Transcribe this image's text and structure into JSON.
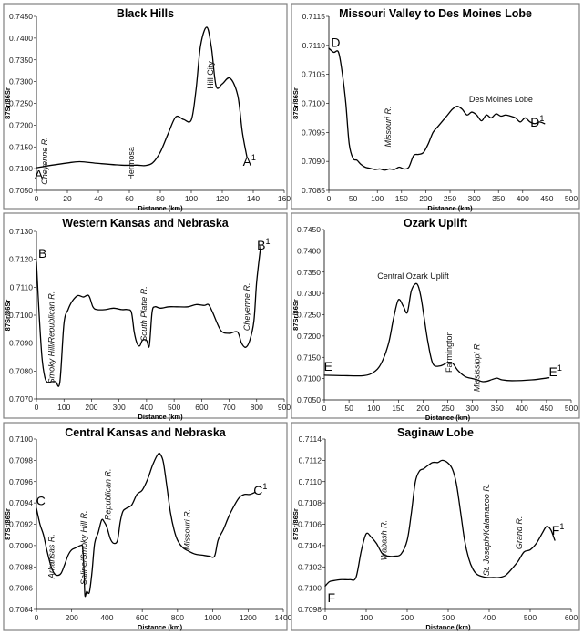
{
  "chart_data": [
    {
      "id": "black-hills",
      "type": "line",
      "title": "Black Hills",
      "xlabel": "Distance (km)",
      "ylabel": "87Sr/86Sr",
      "xlim": [
        0,
        160
      ],
      "ylim": [
        0.705,
        0.745
      ],
      "xticks": [
        0,
        20,
        40,
        60,
        80,
        100,
        120,
        140,
        160
      ],
      "yticks": [
        0.705,
        0.71,
        0.715,
        0.72,
        0.725,
        0.73,
        0.735,
        0.74,
        0.745
      ],
      "ydecimals": 4,
      "x": [
        0,
        10,
        20,
        28,
        40,
        55,
        65,
        70,
        75,
        80,
        85,
        90,
        95,
        100,
        103,
        106,
        110,
        113,
        116,
        120,
        125,
        130,
        133,
        136
      ],
      "y": [
        0.7102,
        0.7108,
        0.7113,
        0.7116,
        0.7112,
        0.7108,
        0.7108,
        0.7107,
        0.7113,
        0.7138,
        0.718,
        0.7219,
        0.7213,
        0.7212,
        0.728,
        0.7383,
        0.7425,
        0.7378,
        0.729,
        0.7295,
        0.7308,
        0.7268,
        0.7183,
        0.7125
      ],
      "points": [
        {
          "label": "A",
          "sup": "",
          "x": 1.5,
          "y": 0.7076
        },
        {
          "label": "A",
          "sup": "1",
          "x": 137.5,
          "y": 0.7107
        }
      ],
      "annotations": [
        {
          "text": "Cheyenne R.",
          "x": 7,
          "y": 0.7118,
          "rotate": -90,
          "italic": true
        },
        {
          "text": "Hermosa",
          "x": 63,
          "y": 0.7112,
          "rotate": -90,
          "italic": false
        },
        {
          "text": "Hill City",
          "x": 114,
          "y": 0.7315,
          "rotate": -90,
          "italic": false
        }
      ]
    },
    {
      "id": "missouri-valley",
      "type": "line",
      "title": "Missouri Valley to Des Moines Lobe",
      "xlabel": "Distance (km)",
      "ylabel": "87Sr/86Sr",
      "xlim": [
        0,
        500
      ],
      "ylim": [
        0.7085,
        0.7115
      ],
      "xticks": [
        0,
        50,
        100,
        150,
        200,
        250,
        300,
        350,
        400,
        450,
        500
      ],
      "yticks": [
        0.7085,
        0.709,
        0.7095,
        0.71,
        0.7105,
        0.711,
        0.7115
      ],
      "ydecimals": 4,
      "x": [
        0,
        10,
        20,
        28,
        35,
        42,
        50,
        58,
        66,
        75,
        85,
        95,
        105,
        115,
        125,
        135,
        145,
        155,
        165,
        175,
        185,
        195,
        205,
        215,
        225,
        235,
        245,
        255,
        265,
        275,
        285,
        295,
        305,
        315,
        325,
        335,
        345,
        355,
        365,
        375,
        385,
        395,
        405,
        415,
        425,
        435,
        445
      ],
      "y": [
        0.71095,
        0.71088,
        0.71088,
        0.7105,
        0.71,
        0.7093,
        0.70905,
        0.70902,
        0.70895,
        0.7089,
        0.70888,
        0.70886,
        0.70887,
        0.70885,
        0.70887,
        0.70886,
        0.7089,
        0.70887,
        0.7089,
        0.7091,
        0.70912,
        0.70915,
        0.7093,
        0.7095,
        0.7096,
        0.7097,
        0.7098,
        0.7099,
        0.70995,
        0.7099,
        0.7098,
        0.70985,
        0.7098,
        0.7097,
        0.7098,
        0.70975,
        0.70982,
        0.70978,
        0.7098,
        0.70978,
        0.70975,
        0.70968,
        0.70975,
        0.70968,
        0.70965,
        0.70968,
        0.70965
      ],
      "points": [
        {
          "label": "D",
          "sup": "",
          "x": 14,
          "y": 0.71097
        },
        {
          "label": "D",
          "sup": "1",
          "x": 430,
          "y": 0.7096
        }
      ],
      "annotations": [
        {
          "text": "Missouri R.",
          "x": 128,
          "y": 0.7096,
          "rotate": -90,
          "italic": true
        },
        {
          "text": "Des Moines Lobe",
          "x": 355,
          "y": 0.71002,
          "rotate": 0,
          "italic": false
        }
      ]
    },
    {
      "id": "western-kansas",
      "type": "line",
      "title": "Western Kansas and Nebraska",
      "xlabel": "Distance (km)",
      "ylabel": "87Sr/86Sr",
      "xlim": [
        0,
        900
      ],
      "ylim": [
        0.707,
        0.713
      ],
      "xticks": [
        0,
        100,
        200,
        300,
        400,
        500,
        600,
        700,
        800,
        900
      ],
      "yticks": [
        0.707,
        0.708,
        0.709,
        0.71,
        0.711,
        0.712,
        0.713
      ],
      "ydecimals": 4,
      "x": [
        0,
        10,
        20,
        30,
        40,
        55,
        70,
        85,
        100,
        115,
        130,
        150,
        170,
        190,
        205,
        220,
        250,
        280,
        310,
        330,
        345,
        355,
        365,
        375,
        385,
        400,
        410,
        420,
        430,
        450,
        480,
        510,
        550,
        580,
        610,
        625,
        640,
        670,
        700,
        730,
        745,
        760,
        775,
        790,
        800,
        815
      ],
      "y": [
        0.7119,
        0.71,
        0.7085,
        0.7078,
        0.7076,
        0.70762,
        0.70762,
        0.7076,
        0.7097,
        0.7102,
        0.7105,
        0.7107,
        0.71065,
        0.7107,
        0.7103,
        0.7102,
        0.7102,
        0.71025,
        0.7102,
        0.7102,
        0.7101,
        0.7094,
        0.709,
        0.7089,
        0.7091,
        0.7091,
        0.7089,
        0.7101,
        0.7103,
        0.71025,
        0.7103,
        0.7103,
        0.7103,
        0.71038,
        0.71035,
        0.71038,
        0.7101,
        0.70945,
        0.70935,
        0.7094,
        0.709,
        0.70885,
        0.7091,
        0.7098,
        0.7112,
        0.7125
      ],
      "points": [
        {
          "label": "B",
          "sup": "",
          "x": 22,
          "y": 0.71205
        },
        {
          "label": "B",
          "sup": "1",
          "x": 825,
          "y": 0.71235
        }
      ],
      "annotations": [
        {
          "text": "Smoky Hill/Republican R.",
          "x": 65,
          "y": 0.7092,
          "rotate": -90,
          "italic": true
        },
        {
          "text": "South Platte R.",
          "x": 400,
          "y": 0.71005,
          "rotate": -90,
          "italic": true
        },
        {
          "text": "Cheyenne R.",
          "x": 775,
          "y": 0.7103,
          "rotate": -90,
          "italic": true
        }
      ]
    },
    {
      "id": "ozark",
      "type": "line",
      "title": "Ozark Uplift",
      "xlabel": "Distance (km)",
      "ylabel": "87Sr/86Sr",
      "xlim": [
        0,
        500
      ],
      "ylim": [
        0.705,
        0.745
      ],
      "xticks": [
        0,
        50,
        100,
        150,
        200,
        250,
        300,
        350,
        400,
        450,
        500
      ],
      "yticks": [
        0.705,
        0.71,
        0.715,
        0.72,
        0.725,
        0.73,
        0.735,
        0.74,
        0.745
      ],
      "ydecimals": 4,
      "x": [
        0,
        40,
        80,
        100,
        115,
        130,
        140,
        150,
        160,
        168,
        176,
        184,
        190,
        196,
        202,
        210,
        220,
        235,
        250,
        260,
        270,
        285,
        300,
        310,
        320,
        330,
        340,
        350,
        360,
        380,
        420,
        455
      ],
      "y": [
        0.7108,
        0.7107,
        0.7107,
        0.7115,
        0.7135,
        0.7182,
        0.724,
        0.7285,
        0.727,
        0.7255,
        0.7305,
        0.7322,
        0.7318,
        0.729,
        0.7245,
        0.7185,
        0.7135,
        0.713,
        0.7138,
        0.7136,
        0.712,
        0.7105,
        0.71,
        0.7097,
        0.7093,
        0.7094,
        0.7098,
        0.7101,
        0.7097,
        0.7095,
        0.7097,
        0.7102
      ],
      "points": [
        {
          "label": "E",
          "sup": "",
          "x": 8,
          "y": 0.7118
        },
        {
          "label": "E",
          "sup": "1",
          "x": 468,
          "y": 0.7106
        }
      ],
      "annotations": [
        {
          "text": "Central Ozark Uplift",
          "x": 180,
          "y": 0.7334,
          "rotate": 0,
          "italic": false
        },
        {
          "text": "Farmington",
          "x": 258,
          "y": 0.7163,
          "rotate": -90,
          "italic": false
        },
        {
          "text": "Mississippi R.",
          "x": 315,
          "y": 0.7128,
          "rotate": -90,
          "italic": true
        }
      ]
    },
    {
      "id": "central-kansas",
      "type": "line",
      "title": "Central Kansas and Nebraska",
      "xlabel": "Distance (km)",
      "ylabel": "87Sr/86Sr",
      "xlim": [
        0,
        1400
      ],
      "ylim": [
        0.7084,
        0.71
      ],
      "xticks": [
        0,
        200,
        400,
        600,
        800,
        1000,
        1200,
        1400
      ],
      "yticks": [
        0.7084,
        0.7086,
        0.7088,
        0.709,
        0.7092,
        0.7094,
        0.7096,
        0.7098,
        0.71
      ],
      "ydecimals": 4,
      "x": [
        0,
        20,
        40,
        60,
        80,
        100,
        120,
        140,
        160,
        180,
        200,
        225,
        250,
        262,
        270,
        275,
        285,
        300,
        315,
        330,
        350,
        370,
        385,
        400,
        420,
        440,
        460,
        475,
        490,
        510,
        540,
        570,
        600,
        630,
        660,
        690,
        705,
        720,
        740,
        760,
        780,
        800,
        830,
        860,
        900,
        940,
        980,
        1010,
        1030,
        1060,
        1090,
        1120,
        1150,
        1180,
        1210,
        1240
      ],
      "y": [
        0.70935,
        0.7092,
        0.7091,
        0.70895,
        0.70882,
        0.70874,
        0.70872,
        0.70874,
        0.70882,
        0.70891,
        0.70896,
        0.70898,
        0.709,
        0.70898,
        0.70875,
        0.70853,
        0.70857,
        0.70856,
        0.70875,
        0.70902,
        0.70912,
        0.70924,
        0.70922,
        0.70917,
        0.70906,
        0.70902,
        0.70905,
        0.70922,
        0.70932,
        0.70935,
        0.70938,
        0.70948,
        0.70952,
        0.70962,
        0.70976,
        0.70986,
        0.70985,
        0.70978,
        0.70955,
        0.70931,
        0.70915,
        0.70905,
        0.70898,
        0.70895,
        0.70892,
        0.70891,
        0.7089,
        0.7089,
        0.70905,
        0.70915,
        0.70927,
        0.70937,
        0.70945,
        0.70948,
        0.70948,
        0.7095
      ],
      "points": [
        {
          "label": "C",
          "sup": "",
          "x": 25,
          "y": 0.70938
        },
        {
          "label": "C",
          "sup": "1",
          "x": 1270,
          "y": 0.70948
        }
      ],
      "annotations": [
        {
          "text": "Arkansas R.",
          "x": 100,
          "y": 0.7089,
          "rotate": -90,
          "italic": true
        },
        {
          "text": "Saline/Smoky Hill R.",
          "x": 285,
          "y": 0.70898,
          "rotate": -90,
          "italic": true
        },
        {
          "text": "Republican R.",
          "x": 420,
          "y": 0.70948,
          "rotate": -90,
          "italic": true
        },
        {
          "text": "Missouri R.",
          "x": 870,
          "y": 0.70915,
          "rotate": -90,
          "italic": true
        }
      ]
    },
    {
      "id": "saginaw",
      "type": "line",
      "title": "Saginaw Lobe",
      "xlabel": "Distance (km)",
      "ylabel": "87Sr/86Sr",
      "xlim": [
        0,
        600
      ],
      "ylim": [
        0.7098,
        0.7114
      ],
      "xticks": [
        0,
        100,
        200,
        300,
        400,
        500,
        600
      ],
      "yticks": [
        0.7098,
        0.71,
        0.7102,
        0.7104,
        0.7106,
        0.7108,
        0.711,
        0.7112,
        0.7114
      ],
      "ydecimals": 4,
      "x": [
        0,
        10,
        20,
        40,
        60,
        75,
        88,
        100,
        112,
        125,
        140,
        155,
        170,
        185,
        200,
        210,
        220,
        230,
        240,
        250,
        262,
        275,
        285,
        298,
        310,
        320,
        330,
        340,
        350,
        360,
        370,
        382,
        395,
        410,
        425,
        440,
        455,
        470,
        485,
        500,
        515,
        530,
        540,
        550,
        560
      ],
      "y": [
        0.71002,
        0.71006,
        0.71007,
        0.71008,
        0.71008,
        0.7101,
        0.71035,
        0.71051,
        0.71048,
        0.71042,
        0.71032,
        0.7103,
        0.7103,
        0.71032,
        0.71045,
        0.7107,
        0.711,
        0.7111,
        0.71112,
        0.71115,
        0.71118,
        0.71118,
        0.7112,
        0.71118,
        0.71112,
        0.71098,
        0.71072,
        0.71045,
        0.71028,
        0.71018,
        0.71013,
        0.71011,
        0.7101,
        0.7101,
        0.7101,
        0.71012,
        0.71018,
        0.71025,
        0.71034,
        0.71036,
        0.71042,
        0.71052,
        0.71058,
        0.71055,
        0.71045
      ],
      "points": [
        {
          "label": "F",
          "sup": "",
          "x": 15,
          "y": 0.70987
        },
        {
          "label": "F",
          "sup": "1",
          "x": 568,
          "y": 0.7105
        }
      ],
      "annotations": [
        {
          "text": "Wabash R.",
          "x": 150,
          "y": 0.71045,
          "rotate": -90,
          "italic": true
        },
        {
          "text": "St. Joseph/Kalamazoo R.",
          "x": 400,
          "y": 0.71055,
          "rotate": -90,
          "italic": true
        },
        {
          "text": "Grand R.",
          "x": 480,
          "y": 0.71052,
          "rotate": -90,
          "italic": true
        }
      ]
    }
  ]
}
